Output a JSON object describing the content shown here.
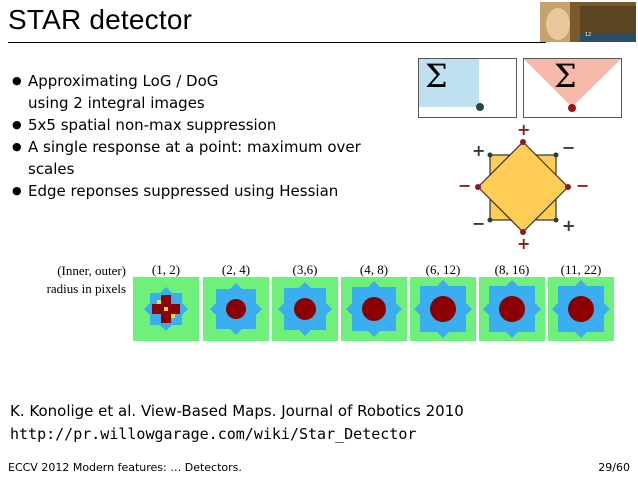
{
  "slide": {
    "title": "STAR detector",
    "bullets": [
      "Approximating LoG / DoG using 2 integral images",
      "5x5 spatial non-max suppression",
      "A single response at a point:  maximum over scales",
      "Edge reponses suppressed using Hessian"
    ],
    "sigma_symbol": "Σ",
    "octagon_signs": [
      "+",
      "−",
      "+",
      "−",
      "−",
      "−",
      "−",
      "+",
      "+"
    ],
    "scales_label": "(Inner, outer) radius in pixels",
    "scales": [
      "(1, 2)",
      "(2, 4)",
      "(3,6)",
      "(4, 8)",
      "(6, 12)",
      "(8, 16)",
      "(11, 22)"
    ],
    "reference": "K. Konolige et al. View-Based Maps. Journal of Robotics 2010",
    "url": "http://pr.willowgarage.com/wiki/Star_Detector",
    "footer": "ECCV 2012  Modern features: … Detectors.",
    "page": "29/60",
    "logo_caption": "12"
  },
  "colors": {
    "outer_ring": "#6ef07a",
    "middle_ring": "#3aaef0",
    "inner_core": "#8b0000",
    "octagon_fill": "#ffcc55",
    "sign_color": "#8b1a1a"
  }
}
